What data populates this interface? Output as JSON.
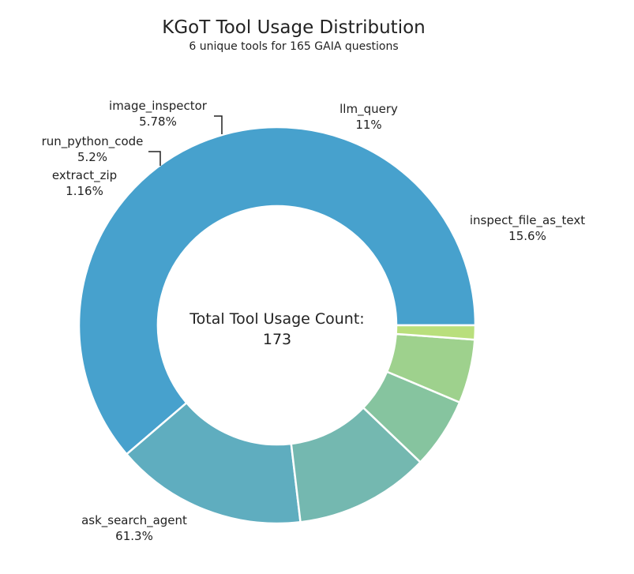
{
  "chart_data": {
    "type": "pie",
    "variant": "donut",
    "title": "KGoT Tool Usage Distribution",
    "subtitle": "6 unique tools for 165 GAIA questions",
    "center_label": "Total Tool Usage Count:",
    "center_value": "173",
    "slices": [
      {
        "label": "ask_search_agent",
        "value": 106,
        "percent_label": "61.3%",
        "color": "#47a1cd"
      },
      {
        "label": "inspect_file_as_text",
        "value": 27,
        "percent_label": "15.6%",
        "color": "#5fadbf"
      },
      {
        "label": "llm_query",
        "value": 19,
        "percent_label": "11%",
        "color": "#74b8b0"
      },
      {
        "label": "image_inspector",
        "value": 10,
        "percent_label": "5.78%",
        "color": "#86c49f"
      },
      {
        "label": "run_python_code",
        "value": 9,
        "percent_label": "5.2%",
        "color": "#9ed18d"
      },
      {
        "label": "extract_zip",
        "value": 2,
        "percent_label": "1.16%",
        "color": "#b9df7c"
      }
    ]
  }
}
